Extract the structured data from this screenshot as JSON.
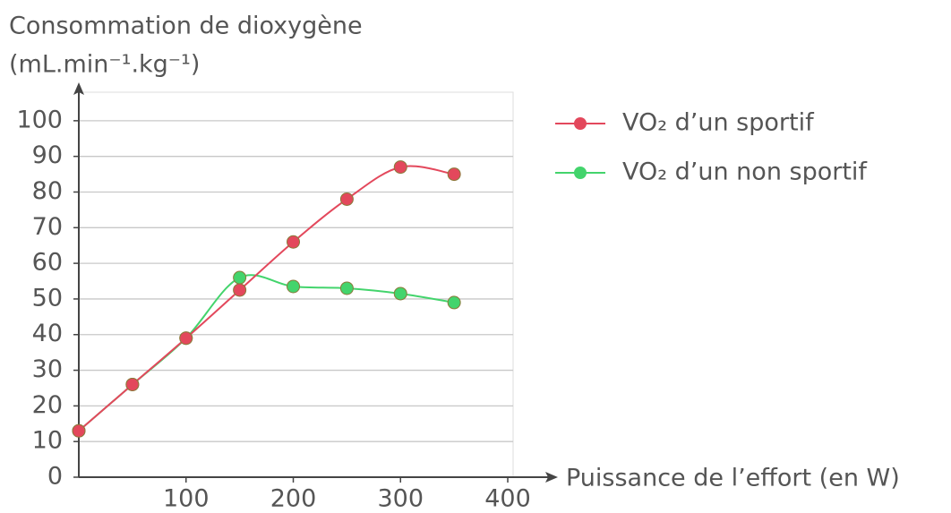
{
  "chart_data": {
    "type": "line",
    "ylabel": [
      "Consommation de dioxygène",
      "(mL.min⁻¹.kg⁻¹)"
    ],
    "xlabel": "Puissance de l’effort (en W)",
    "x": [
      0,
      50,
      100,
      150,
      200,
      250,
      300,
      350
    ],
    "series": [
      {
        "name": "VO₂ d’un non sportif",
        "color": "#43d46c",
        "values": [
          13,
          26,
          39,
          56,
          53.5,
          53,
          51.5,
          49
        ]
      },
      {
        "name": "VO₂ d’un sportif",
        "color": "#e3485c",
        "values": [
          13,
          26,
          39,
          52.5,
          66,
          78,
          87,
          85
        ]
      }
    ],
    "xlim": [
      0,
      405
    ],
    "ylim": [
      0,
      108
    ],
    "xticks": [
      100,
      200,
      300,
      400
    ],
    "yticks": [
      0,
      10,
      20,
      30,
      40,
      50,
      60,
      70,
      80,
      90,
      100
    ],
    "grid": true
  }
}
